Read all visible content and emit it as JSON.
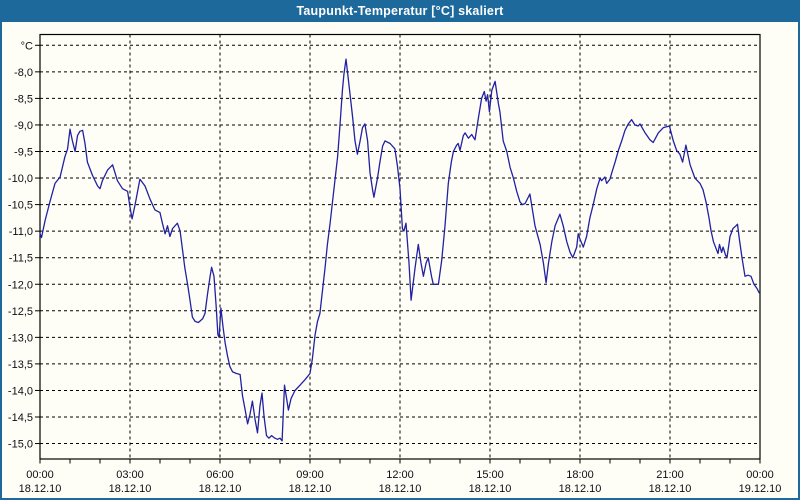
{
  "window": {
    "title": "Taupunkt-Temperatur [°C] skaliert"
  },
  "colors": {
    "titlebar": "#1d699c",
    "window_border": "#1d699c",
    "background": "#fffef6",
    "plot_border": "#000000",
    "grid": "#000000",
    "line": "#2121a3",
    "text": "#0d0d15",
    "title_text": "#ffffff"
  },
  "chart_data": {
    "type": "line",
    "title": "Taupunkt-Temperatur [°C] skaliert",
    "legend": "none",
    "grid": "dashed",
    "ylim": [
      -15.3,
      -7.3
    ],
    "y_axis": {
      "unit_label": "°C",
      "min": -15.0,
      "max": -7.5,
      "step": 0.5,
      "tick_labels": [
        "-8,0",
        "-8,5",
        "-9,0",
        "-9,5",
        "-10,0",
        "-10,5",
        "-11,0",
        "-11,5",
        "-12,0",
        "-12,5",
        "-13,0",
        "-13,5",
        "-14,0",
        "-14,5",
        "-15,0"
      ]
    },
    "x_axis": {
      "range_hours": [
        0,
        24
      ],
      "minor_tick_hours": 1,
      "major_grid_hours": 3,
      "tick_labels": [
        {
          "time": "00:00",
          "date": "18.12.10"
        },
        {
          "time": "03:00",
          "date": "18.12.10"
        },
        {
          "time": "06:00",
          "date": "18.12.10"
        },
        {
          "time": "09:00",
          "date": "18.12.10"
        },
        {
          "time": "12:00",
          "date": "18.12.10"
        },
        {
          "time": "15:00",
          "date": "18.12.10"
        },
        {
          "time": "18:00",
          "date": "18.12.10"
        },
        {
          "time": "21:00",
          "date": "18.12.10"
        },
        {
          "time": "00:00",
          "date": "19.12.10"
        }
      ]
    },
    "series": [
      {
        "name": "Taupunkt-Temperatur",
        "x_hours": [
          0,
          0.05,
          0.17,
          0.33,
          0.5,
          0.67,
          0.83,
          0.92,
          1,
          1.08,
          1.17,
          1.25,
          1.33,
          1.42,
          1.5,
          1.58,
          1.75,
          1.92,
          2,
          2.08,
          2.25,
          2.42,
          2.58,
          2.75,
          2.92,
          3,
          3.07,
          3.17,
          3.33,
          3.5,
          3.67,
          3.83,
          4,
          4.08,
          4.17,
          4.25,
          4.33,
          4.42,
          4.58,
          4.67,
          4.75,
          4.83,
          4.92,
          5,
          5.08,
          5.17,
          5.28,
          5.42,
          5.5,
          5.58,
          5.67,
          5.72,
          5.8,
          5.87,
          5.93,
          5.97,
          6.03,
          6.1,
          6.17,
          6.25,
          6.33,
          6.42,
          6.55,
          6.67,
          6.75,
          6.85,
          6.92,
          7,
          7.08,
          7.17,
          7.25,
          7.33,
          7.4,
          7.47,
          7.55,
          7.63,
          7.72,
          7.83,
          7.92,
          8,
          8.07,
          8.15,
          8.22,
          8.28,
          8.37,
          8.5,
          8.67,
          8.83,
          9,
          9.08,
          9.17,
          9.25,
          9.33,
          9.42,
          9.5,
          9.58,
          9.67,
          9.75,
          9.83,
          9.92,
          10,
          10.08,
          10.13,
          10.2,
          10.27,
          10.33,
          10.42,
          10.5,
          10.58,
          10.67,
          10.75,
          10.83,
          10.92,
          11,
          11.08,
          11.13,
          11.25,
          11.33,
          11.42,
          11.5,
          11.67,
          11.83,
          11.92,
          12,
          12.08,
          12.13,
          12.2,
          12.3,
          12.37,
          12.5,
          12.61,
          12.7,
          12.78,
          12.87,
          12.94,
          13.05,
          13.11,
          13.28,
          13.39,
          13.5,
          13.61,
          13.71,
          13.78,
          13.89,
          13.94,
          14,
          14.11,
          14.17,
          14.28,
          14.39,
          14.5,
          14.61,
          14.72,
          14.81,
          14.87,
          14.92,
          14.98,
          15.06,
          15.17,
          15.28,
          15.33,
          15.44,
          15.56,
          15.67,
          15.78,
          15.89,
          16,
          16.08,
          16.17,
          16.33,
          16.5,
          16.67,
          16.78,
          16.87,
          16.95,
          17.06,
          17.17,
          17.33,
          17.44,
          17.56,
          17.67,
          17.76,
          17.89,
          17.94,
          18,
          18.11,
          18.22,
          18.33,
          18.44,
          18.56,
          18.67,
          18.72,
          18.83,
          18.89,
          19,
          19.06,
          19.17,
          19.28,
          19.39,
          19.5,
          19.61,
          19.72,
          19.83,
          19.94,
          20,
          20.17,
          20.33,
          20.44,
          20.61,
          20.78,
          20.98,
          21.11,
          21.22,
          21.33,
          21.42,
          21.53,
          21.67,
          21.83,
          22,
          22.1,
          22.2,
          22.3,
          22.37,
          22.45,
          22.55,
          22.6,
          22.65,
          22.72,
          22.77,
          22.85,
          22.9,
          23,
          23.1,
          23.2,
          23.25,
          23.3,
          23.4,
          23.5,
          23.6,
          23.7,
          23.8,
          23.9,
          23.97
        ],
        "values": [
          -11.05,
          -11.12,
          -10.8,
          -10.45,
          -10.1,
          -9.98,
          -9.6,
          -9.45,
          -9.08,
          -9.3,
          -9.5,
          -9.2,
          -9.12,
          -9.1,
          -9.35,
          -9.7,
          -9.95,
          -10.15,
          -10.2,
          -10.05,
          -9.85,
          -9.75,
          -10.05,
          -10.2,
          -10.25,
          -10.55,
          -10.77,
          -10.5,
          -10.02,
          -10.15,
          -10.4,
          -10.6,
          -10.65,
          -10.85,
          -11.05,
          -10.9,
          -11.1,
          -10.95,
          -10.85,
          -11,
          -11.35,
          -11.7,
          -12,
          -12.3,
          -12.62,
          -12.7,
          -12.72,
          -12.65,
          -12.55,
          -12.2,
          -11.85,
          -11.68,
          -11.85,
          -12.4,
          -12.95,
          -13,
          -12.45,
          -12.8,
          -13.1,
          -13.35,
          -13.55,
          -13.65,
          -13.68,
          -13.7,
          -14.1,
          -14.4,
          -14.63,
          -14.45,
          -14.2,
          -14.55,
          -14.8,
          -14.3,
          -14.05,
          -14.5,
          -14.85,
          -14.9,
          -14.85,
          -14.9,
          -14.92,
          -14.9,
          -14.95,
          -13.9,
          -14.15,
          -14.37,
          -14.15,
          -14,
          -13.9,
          -13.8,
          -13.68,
          -13.4,
          -12.95,
          -12.7,
          -12.55,
          -12.1,
          -11.7,
          -11.25,
          -10.85,
          -10.45,
          -10.05,
          -9.6,
          -9,
          -8.35,
          -8.05,
          -7.76,
          -8.1,
          -8.4,
          -8.85,
          -9.3,
          -9.55,
          -9.3,
          -9.05,
          -8.98,
          -9.3,
          -9.9,
          -10.2,
          -10.36,
          -10,
          -9.7,
          -9.4,
          -9.3,
          -9.35,
          -9.45,
          -9.8,
          -10.2,
          -10.95,
          -11,
          -10.85,
          -11.6,
          -12.3,
          -11.7,
          -11.25,
          -11.6,
          -11.85,
          -11.6,
          -11.5,
          -11.85,
          -12,
          -12,
          -11.55,
          -10.9,
          -10.1,
          -9.7,
          -9.5,
          -9.38,
          -9.35,
          -9.48,
          -9.2,
          -9.15,
          -9.25,
          -9.18,
          -9.28,
          -8.88,
          -8.5,
          -8.37,
          -8.55,
          -8.43,
          -8.75,
          -8.35,
          -8.18,
          -8.6,
          -8.75,
          -9.3,
          -9.5,
          -9.8,
          -10,
          -10.25,
          -10.45,
          -10.5,
          -10.48,
          -10.3,
          -10.9,
          -11.25,
          -11.6,
          -11.97,
          -11.6,
          -11.2,
          -10.9,
          -10.68,
          -10.9,
          -11.2,
          -11.4,
          -11.5,
          -11.3,
          -11.05,
          -11.15,
          -11.3,
          -11.1,
          -10.75,
          -10.5,
          -10.2,
          -10,
          -10.05,
          -9.98,
          -10.1,
          -10.02,
          -9.9,
          -9.7,
          -9.48,
          -9.3,
          -9.1,
          -8.98,
          -8.9,
          -9,
          -9.02,
          -8.98,
          -9.15,
          -9.28,
          -9.33,
          -9.15,
          -9.05,
          -9.02,
          -9.3,
          -9.48,
          -9.55,
          -9.7,
          -9.38,
          -9.75,
          -10,
          -10.1,
          -10.22,
          -10.45,
          -10.75,
          -11,
          -11.2,
          -11.35,
          -11.42,
          -11.25,
          -11.4,
          -11.3,
          -11.45,
          -11.5,
          -11.1,
          -10.95,
          -10.9,
          -10.87,
          -11.1,
          -11.5,
          -11.85,
          -11.83,
          -11.85,
          -12,
          -12.08,
          -12.16
        ]
      }
    ]
  }
}
